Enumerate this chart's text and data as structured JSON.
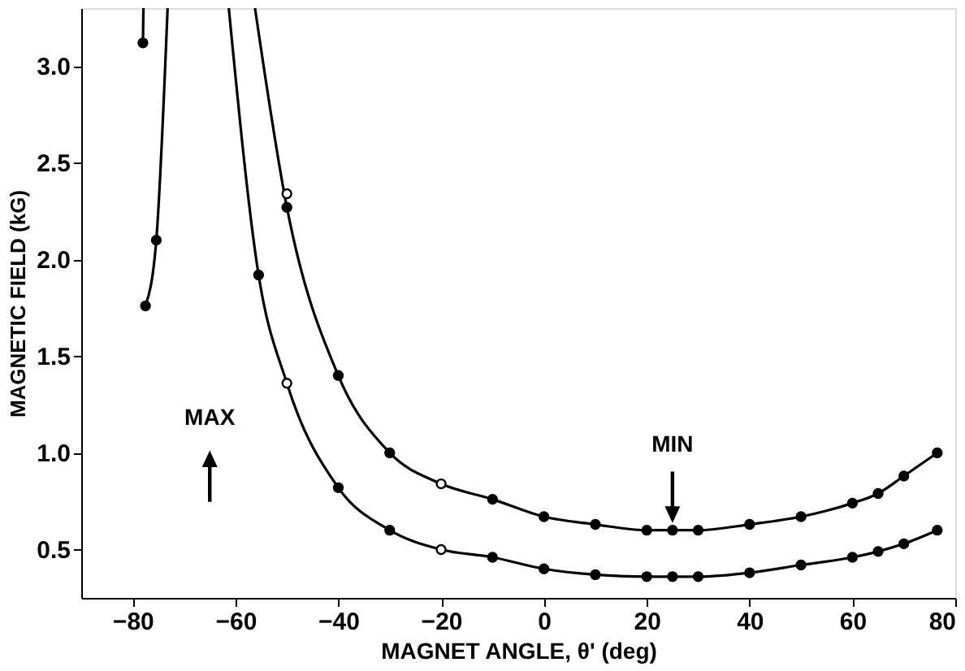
{
  "chart_data": {
    "type": "line",
    "xlabel": "MAGNET ANGLE, θ' (deg)",
    "ylabel": "MAGNETIC FIELD (kG)",
    "xlim": [
      -90,
      80
    ],
    "ylim": [
      0.25,
      3.3
    ],
    "xticks": [
      -80,
      -60,
      -40,
      -20,
      0,
      20,
      40,
      60,
      80
    ],
    "yticks": [
      0.5,
      {
        "value": 1,
        "label": "1.0"
      },
      1.5,
      {
        "value": 2,
        "label": "2.0"
      },
      2.5,
      {
        "value": 3,
        "label": "3.0"
      }
    ],
    "grid": false,
    "line_style": "solid",
    "series": [
      {
        "marker": "none",
        "color": "#000000",
        "x": [
          -78,
          -77.9
        ],
        "values": [
          3.12,
          3.3
        ]
      },
      {
        "marker": "none",
        "color": "#000000",
        "x": [
          -77.5,
          -75.4,
          -73.2
        ],
        "values": [
          1.76,
          2.1,
          3.3
        ]
      },
      {
        "marker": "none",
        "color": "#000000",
        "x": [
          -56.2,
          -50,
          -40,
          -30,
          -20,
          -10,
          0,
          10,
          20,
          25,
          30,
          40,
          50,
          60,
          65,
          70,
          76.5
        ],
        "values": [
          3.3,
          2.27,
          1.4,
          1.0,
          0.84,
          0.76,
          0.67,
          0.63,
          0.6,
          0.6,
          0.6,
          0.63,
          0.67,
          0.74,
          0.79,
          0.88,
          1.0
        ]
      },
      {
        "marker": "none",
        "color": "#000000",
        "x": [
          -61.3,
          -55.5,
          -50,
          -40,
          -30,
          -20,
          -10,
          0,
          10,
          20,
          25,
          30,
          40,
          50,
          60,
          65,
          70,
          76.5
        ],
        "values": [
          3.3,
          1.92,
          1.36,
          0.82,
          0.6,
          0.5,
          0.46,
          0.4,
          0.37,
          0.36,
          0.36,
          0.36,
          0.38,
          0.42,
          0.46,
          0.49,
          0.53,
          0.6
        ]
      },
      {
        "type": "scatter",
        "marker": "circle",
        "color": "#000000",
        "x": [
          -78,
          -77.5,
          -75.4,
          -50,
          -40,
          -30,
          -10,
          0,
          10,
          20,
          25,
          30,
          40,
          50,
          60,
          65,
          70,
          76.5
        ],
        "values": [
          3.12,
          1.76,
          2.1,
          2.27,
          1.4,
          1.0,
          0.76,
          0.67,
          0.63,
          0.6,
          0.6,
          0.6,
          0.63,
          0.67,
          0.74,
          0.79,
          0.88,
          1.0
        ]
      },
      {
        "type": "scatter",
        "marker": "circle",
        "color": "#000000",
        "x": [
          -55.5,
          -40,
          -30,
          -10,
          0,
          10,
          20,
          25,
          30,
          40,
          50,
          60,
          65,
          70,
          76.5
        ],
        "values": [
          1.92,
          0.82,
          0.6,
          0.46,
          0.4,
          0.37,
          0.36,
          0.36,
          0.36,
          0.38,
          0.42,
          0.46,
          0.49,
          0.53,
          0.6
        ]
      },
      {
        "type": "scatter",
        "marker": "circle",
        "color": "#ffffff",
        "x": [
          -50,
          -20,
          -50,
          -20
        ],
        "values": [
          2.34,
          0.84,
          1.36,
          0.5
        ]
      }
    ],
    "annotations": [
      "MAX",
      "MIN"
    ]
  }
}
